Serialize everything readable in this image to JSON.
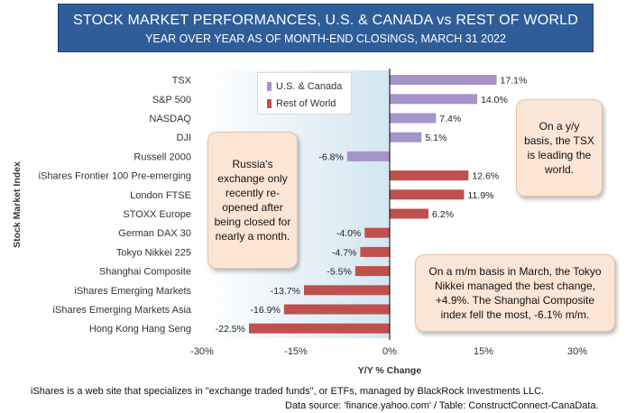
{
  "title": "STOCK MARKET PERFORMANCES, U.S. & CANADA vs REST OF WORLD",
  "subtitle": "YEAR OVER YEAR AS OF MONTH-END CLOSINGS, MARCH 31 2022",
  "colors": {
    "us_canada": "#a593c9",
    "rest_of_world": "#c0504d",
    "banner": "#2f5d99",
    "note_fill": "#fbe6d6"
  },
  "chart_data": {
    "type": "bar",
    "orientation": "horizontal",
    "categories": [
      "TSX",
      "S&P 500",
      "NASDAQ",
      "DJI",
      "Russell  2000",
      "iShares Frontier 100 Pre-emerging",
      "London FTSE",
      "STOXX Europe",
      "German DAX 30",
      "Tokyo Nikkei 225",
      "Shanghai Composite",
      "iShares Emerging Markets",
      "iShares Emerging Markets Asia",
      "Hong Kong Hang Seng"
    ],
    "values": [
      17.1,
      14.0,
      7.4,
      5.1,
      -6.8,
      12.6,
      11.9,
      6.2,
      -4.0,
      -4.7,
      -5.5,
      -13.7,
      -16.9,
      -22.5
    ],
    "data_labels": [
      "17.1%",
      "14.0%",
      "7.4%",
      "5.1%",
      "-6.8%",
      "12.6%",
      "11.9%",
      "6.2%",
      "-4.0%",
      "-4.7%",
      "-5.5%",
      "-13.7%",
      "-16.9%",
      "-22.5%"
    ],
    "groups": [
      "us_canada",
      "us_canada",
      "us_canada",
      "us_canada",
      "us_canada",
      "rest_of_world",
      "rest_of_world",
      "rest_of_world",
      "rest_of_world",
      "rest_of_world",
      "rest_of_world",
      "rest_of_world",
      "rest_of_world",
      "rest_of_world"
    ],
    "series": [
      {
        "name": "U.S. & Canada",
        "key": "us_canada"
      },
      {
        "name": "Rest of World",
        "key": "rest_of_world"
      }
    ],
    "xlabel": "Y/Y % Change",
    "ylabel": "Stock Market Index",
    "xlim": [
      -30,
      30
    ],
    "xticks": [
      -30,
      -15,
      0,
      15,
      30
    ],
    "xtick_labels": [
      "-30%",
      "-15%",
      "0%",
      "15%",
      "30%"
    ],
    "grid": false,
    "legend_position": "top-center"
  },
  "annotations": {
    "russia": "Russia's exchange only recently re-opened after being closed for nearly a month.",
    "tsx": "On a y/y basis, the TSX is leading the world.",
    "tokyo": "On a m/m basis in March, the Tokyo Nikkei managed the best change, +4.9%. The Shanghai Composite index fell the most, -6.1% m/m."
  },
  "footer": {
    "line1": "iShares is a web site that specializes in \"exchange traded funds\", or ETFs, managed by BlackRock Investments LLC.",
    "line2": "Data source: 'finance.yahoo.com' / Table: ConstructConnect-CanaData."
  }
}
